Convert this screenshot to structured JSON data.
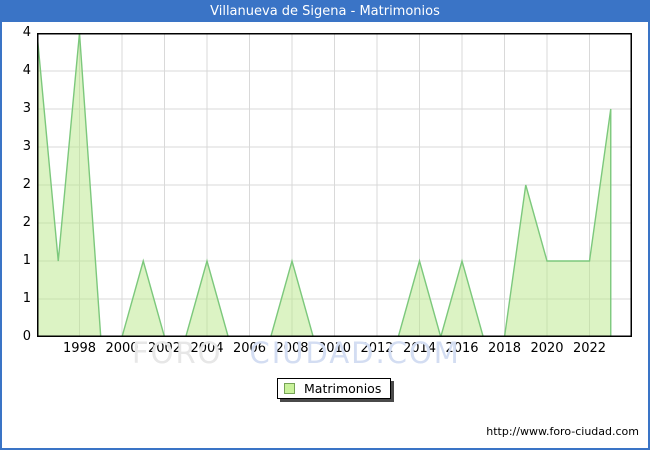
{
  "title": "Villanueva de Sigena - Matrimonios",
  "legend": {
    "label": "Matrimonios"
  },
  "watermark": {
    "part1": "FORO",
    "part2": "CIUDAD.COM"
  },
  "footer": {
    "url": "http://www.foro-ciudad.com"
  },
  "colors": {
    "frame_blue": "#3a74c6",
    "title_text": "#ffffff",
    "grid": "#d9d9d9",
    "plot_border": "#000000",
    "area_line_green": "#7cc87c",
    "area_fill_green": "rgba(186,232,138,0.5)",
    "legend_swatch_fill": "#c9f29b",
    "legend_swatch_border": "#76a356",
    "watermark_gray": "#e7e7e7",
    "watermark_blue": "#d3ddf2"
  },
  "chart_data": {
    "type": "area",
    "title": "Villanueva de Sigena - Matrimonios",
    "xlabel": "",
    "ylabel": "",
    "xlim": [
      1996,
      2024
    ],
    "ylim": [
      0,
      4
    ],
    "grid": true,
    "legend_position": "bottom-center",
    "x_ticks": [
      1998,
      2000,
      2002,
      2004,
      2006,
      2008,
      2010,
      2012,
      2014,
      2016,
      2018,
      2020,
      2022
    ],
    "y_tick_step": 0.5,
    "y_tick_labels_top_to_bottom": [
      "4",
      "4",
      "3",
      "3",
      "2",
      "2",
      "1",
      "1",
      "0"
    ],
    "series": [
      {
        "name": "Matrimonios",
        "x": [
          1996,
          1997,
          1998,
          1999,
          2000,
          2001,
          2002,
          2003,
          2004,
          2005,
          2006,
          2007,
          2008,
          2009,
          2010,
          2011,
          2012,
          2013,
          2014,
          2015,
          2016,
          2017,
          2018,
          2019,
          2020,
          2021,
          2022,
          2023
        ],
        "values": [
          4,
          1,
          4,
          0,
          0,
          1,
          0,
          0,
          1,
          0,
          0,
          0,
          1,
          0,
          0,
          0,
          0,
          0,
          1,
          0,
          1,
          0,
          0,
          2,
          1,
          1,
          1,
          3
        ]
      }
    ]
  }
}
